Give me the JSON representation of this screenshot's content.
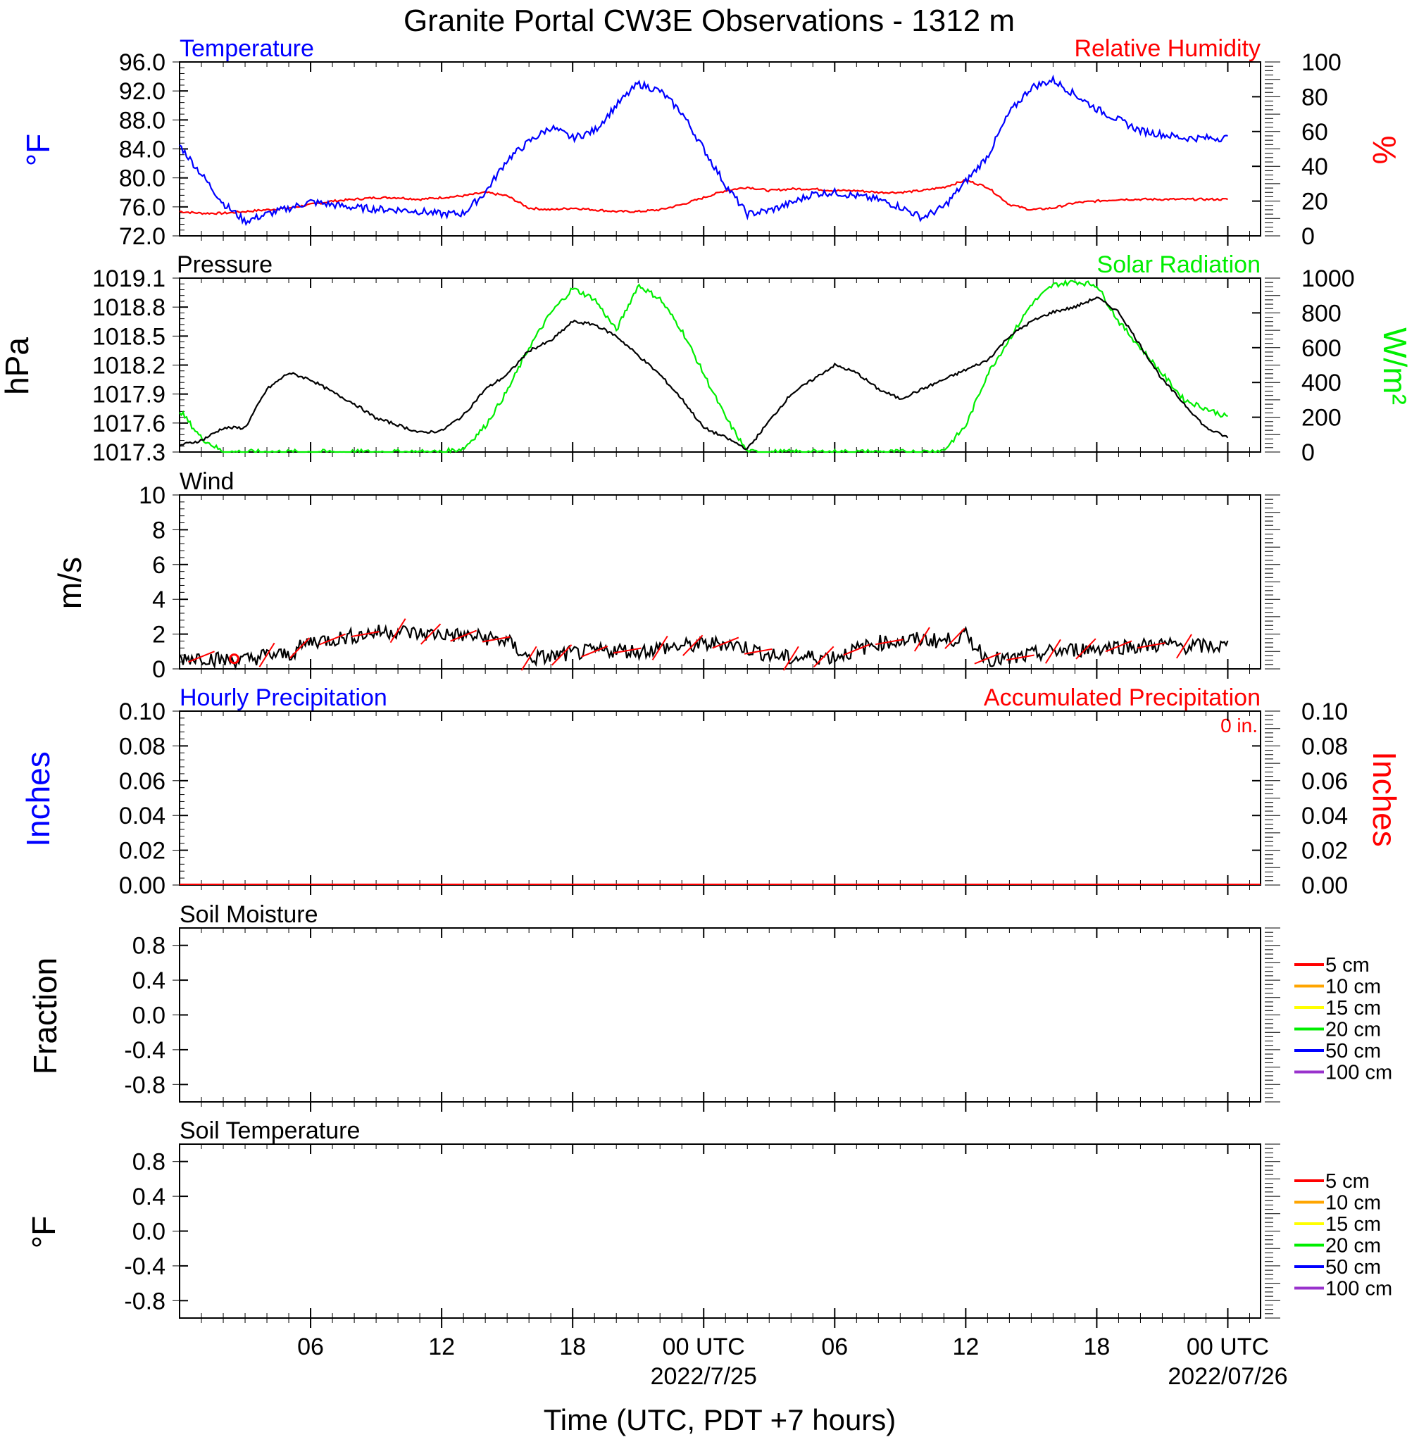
{
  "figure": {
    "title": "Granite Portal CW3E Observations - 1312 m",
    "xlabel": "Time (UTC, PDT +7 hours)",
    "x_ticks": [
      "06",
      "12",
      "18",
      "00 UTC",
      "06",
      "12",
      "18",
      "00 UTC"
    ],
    "x_dates": [
      "2022/7/25",
      "2022/07/26"
    ]
  },
  "colors": {
    "temperature": "#0000ff",
    "humidity": "#ff0000",
    "pressure": "#000000",
    "solar": "#00ee00",
    "wind": "#000000",
    "wind_barb": "#ff0000",
    "precip_hourly": "#0000ff",
    "precip_accum": "#ff0000",
    "legend": [
      "#ff0000",
      "#ffa500",
      "#ffff00",
      "#00ee00",
      "#0000ff",
      "#9932cc"
    ]
  },
  "chart_data": [
    {
      "type": "line",
      "panel": "temperature-humidity",
      "title_left": "Temperature",
      "title_right": "Relative Humidity",
      "ylabel_left": "°F",
      "ylabel_right": "%",
      "x_hours": [
        0,
        1,
        2,
        3,
        4,
        5,
        6,
        7,
        8,
        9,
        10,
        11,
        12,
        13,
        14,
        15,
        16,
        17,
        18,
        19,
        20,
        21,
        22,
        23,
        24,
        25,
        26,
        27,
        28,
        29,
        30,
        31,
        32,
        33,
        34,
        35,
        36,
        37,
        38,
        39,
        40,
        41,
        42,
        43,
        44,
        45,
        46,
        47,
        48
      ],
      "ylim_left": [
        72,
        96
      ],
      "ylim_right": [
        0,
        100
      ],
      "yticks_left": [
        "96.0",
        "92.0",
        "88.0",
        "84.0",
        "80.0",
        "76.0",
        "72.0"
      ],
      "yticks_right": [
        "100",
        "80",
        "60",
        "40",
        "20",
        "0"
      ],
      "series": [
        {
          "name": "Temperature",
          "axis": "left",
          "values": [
            84.5,
            80.5,
            76.5,
            74.0,
            75.0,
            75.8,
            76.7,
            76.3,
            75.9,
            75.7,
            75.6,
            75.4,
            75.0,
            75.1,
            78.0,
            82.5,
            85.0,
            87.0,
            85.5,
            86.5,
            90.0,
            93.0,
            92.0,
            89.0,
            84.0,
            79.0,
            75.0,
            75.5,
            76.5,
            77.8,
            78.0,
            77.5,
            77.0,
            76.0,
            74.5,
            76.0,
            79.5,
            83.0,
            89.0,
            92.5,
            93.5,
            91.5,
            89.5,
            88.0,
            86.5,
            86.0,
            85.5,
            85.5,
            85.5
          ]
        },
        {
          "name": "Relative Humidity",
          "axis": "right",
          "values": [
            14,
            13,
            13,
            14,
            15,
            16,
            18,
            20,
            21,
            22,
            22,
            21,
            22,
            23,
            25,
            23,
            16,
            15,
            16,
            15,
            14,
            14,
            15,
            18,
            22,
            26,
            28,
            26,
            27,
            27,
            26,
            26,
            25,
            25,
            26,
            28,
            32,
            28,
            18,
            15,
            16,
            19,
            20,
            21,
            21,
            21,
            21,
            21,
            21
          ]
        }
      ]
    },
    {
      "type": "line",
      "panel": "pressure-solar",
      "title_left": "Pressure",
      "title_right": "Solar Radiation",
      "ylabel_left": "hPa",
      "ylabel_right": "W/m²",
      "x_hours": [
        0,
        1,
        2,
        3,
        4,
        5,
        6,
        7,
        8,
        9,
        10,
        11,
        12,
        13,
        14,
        15,
        16,
        17,
        18,
        19,
        20,
        21,
        22,
        23,
        24,
        25,
        26,
        27,
        28,
        29,
        30,
        31,
        32,
        33,
        34,
        35,
        36,
        37,
        38,
        39,
        40,
        41,
        42,
        43,
        44,
        45,
        46,
        47,
        48
      ],
      "ylim_left": [
        1017.3,
        1019.1
      ],
      "ylim_right": [
        0,
        1000
      ],
      "yticks_left": [
        "1019.1",
        "1018.8",
        "1018.5",
        "1018.2",
        "1017.9",
        "1017.6",
        "1017.3"
      ],
      "yticks_right": [
        "1000",
        "800",
        "600",
        "400",
        "200",
        "0"
      ],
      "series": [
        {
          "name": "Pressure",
          "axis": "left",
          "values": [
            1017.37,
            1017.42,
            1017.55,
            1017.55,
            1017.95,
            1018.12,
            1018.05,
            1017.92,
            1017.8,
            1017.65,
            1017.58,
            1017.5,
            1017.52,
            1017.68,
            1017.95,
            1018.1,
            1018.35,
            1018.45,
            1018.65,
            1018.62,
            1018.5,
            1018.3,
            1018.1,
            1017.85,
            1017.55,
            1017.45,
            1017.33,
            1017.62,
            1017.9,
            1018.05,
            1018.2,
            1018.12,
            1017.95,
            1017.85,
            1017.95,
            1018.05,
            1018.15,
            1018.25,
            1018.5,
            1018.65,
            1018.75,
            1018.8,
            1018.9,
            1018.75,
            1018.4,
            1018.05,
            1017.8,
            1017.55,
            1017.45
          ]
        },
        {
          "name": "Solar Radiation",
          "axis": "right",
          "values": [
            240,
            80,
            0,
            0,
            0,
            0,
            0,
            0,
            0,
            0,
            0,
            0,
            0,
            20,
            150,
            350,
            600,
            800,
            940,
            880,
            700,
            960,
            880,
            700,
            450,
            200,
            0,
            0,
            0,
            0,
            0,
            0,
            0,
            0,
            0,
            10,
            150,
            450,
            650,
            850,
            960,
            980,
            960,
            750,
            600,
            450,
            300,
            250,
            200
          ]
        }
      ]
    },
    {
      "type": "line",
      "panel": "wind",
      "title_left": "Wind",
      "ylabel_left": "m/s",
      "x_hours": [
        0,
        1,
        2,
        3,
        4,
        5,
        6,
        7,
        8,
        9,
        10,
        11,
        12,
        13,
        14,
        15,
        16,
        17,
        18,
        19,
        20,
        21,
        22,
        23,
        24,
        25,
        26,
        27,
        28,
        29,
        30,
        31,
        32,
        33,
        34,
        35,
        36,
        37,
        38,
        39,
        40,
        41,
        42,
        43,
        44,
        45,
        46,
        47,
        48
      ],
      "ylim_left": [
        0,
        10
      ],
      "yticks_left": [
        "10",
        "8",
        "6",
        "4",
        "2",
        "0"
      ],
      "series": [
        {
          "name": "Wind speed",
          "axis": "left",
          "values": [
            0.6,
            0.7,
            0.5,
            0.5,
            0.8,
            0.8,
            1.6,
            1.7,
            1.9,
            2.1,
            2.2,
            2.0,
            2.0,
            1.9,
            1.8,
            1.6,
            0.6,
            0.7,
            0.9,
            1.0,
            1.1,
            1.0,
            1.2,
            1.3,
            1.4,
            1.5,
            1.2,
            0.8,
            0.6,
            0.7,
            0.7,
            1.1,
            1.5,
            1.6,
            1.7,
            1.6,
            1.9,
            0.6,
            0.5,
            0.8,
            1.0,
            1.1,
            1.2,
            1.3,
            1.3,
            1.4,
            1.3,
            1.3,
            1.3
          ]
        }
      ]
    },
    {
      "type": "line",
      "panel": "precipitation",
      "title_left": "Hourly Precipitation",
      "title_right": "Accumulated Precipitation",
      "annotation": "0 in.",
      "ylabel_left": "Inches",
      "ylabel_right": "Inches",
      "ylim_left": [
        0,
        0.1
      ],
      "ylim_right": [
        0,
        0.1
      ],
      "yticks_left": [
        "0.10",
        "0.08",
        "0.06",
        "0.04",
        "0.02",
        "0.00"
      ],
      "yticks_right": [
        "0.10",
        "0.08",
        "0.06",
        "0.04",
        "0.02",
        "0.00"
      ],
      "series": [
        {
          "name": "Hourly Precipitation",
          "axis": "left",
          "values": [
            0,
            0
          ]
        },
        {
          "name": "Accumulated Precipitation",
          "axis": "right",
          "values": [
            0,
            0
          ]
        }
      ]
    },
    {
      "type": "line",
      "panel": "soil-moisture",
      "title_left": "Soil Moisture",
      "ylabel_left": "Fraction",
      "yticks_left": [
        "0.8",
        "0.4",
        "0.0",
        "-0.4",
        "-0.8"
      ],
      "legend": [
        "5 cm",
        "10 cm",
        "15 cm",
        "20 cm",
        "50 cm",
        "100 cm"
      ],
      "series": []
    },
    {
      "type": "line",
      "panel": "soil-temperature",
      "title_left": "Soil Temperature",
      "ylabel_left": "°F",
      "yticks_left": [
        "0.8",
        "0.4",
        "0.0",
        "-0.4",
        "-0.8"
      ],
      "legend": [
        "5 cm",
        "10 cm",
        "15 cm",
        "20 cm",
        "50 cm",
        "100 cm"
      ],
      "series": []
    }
  ]
}
